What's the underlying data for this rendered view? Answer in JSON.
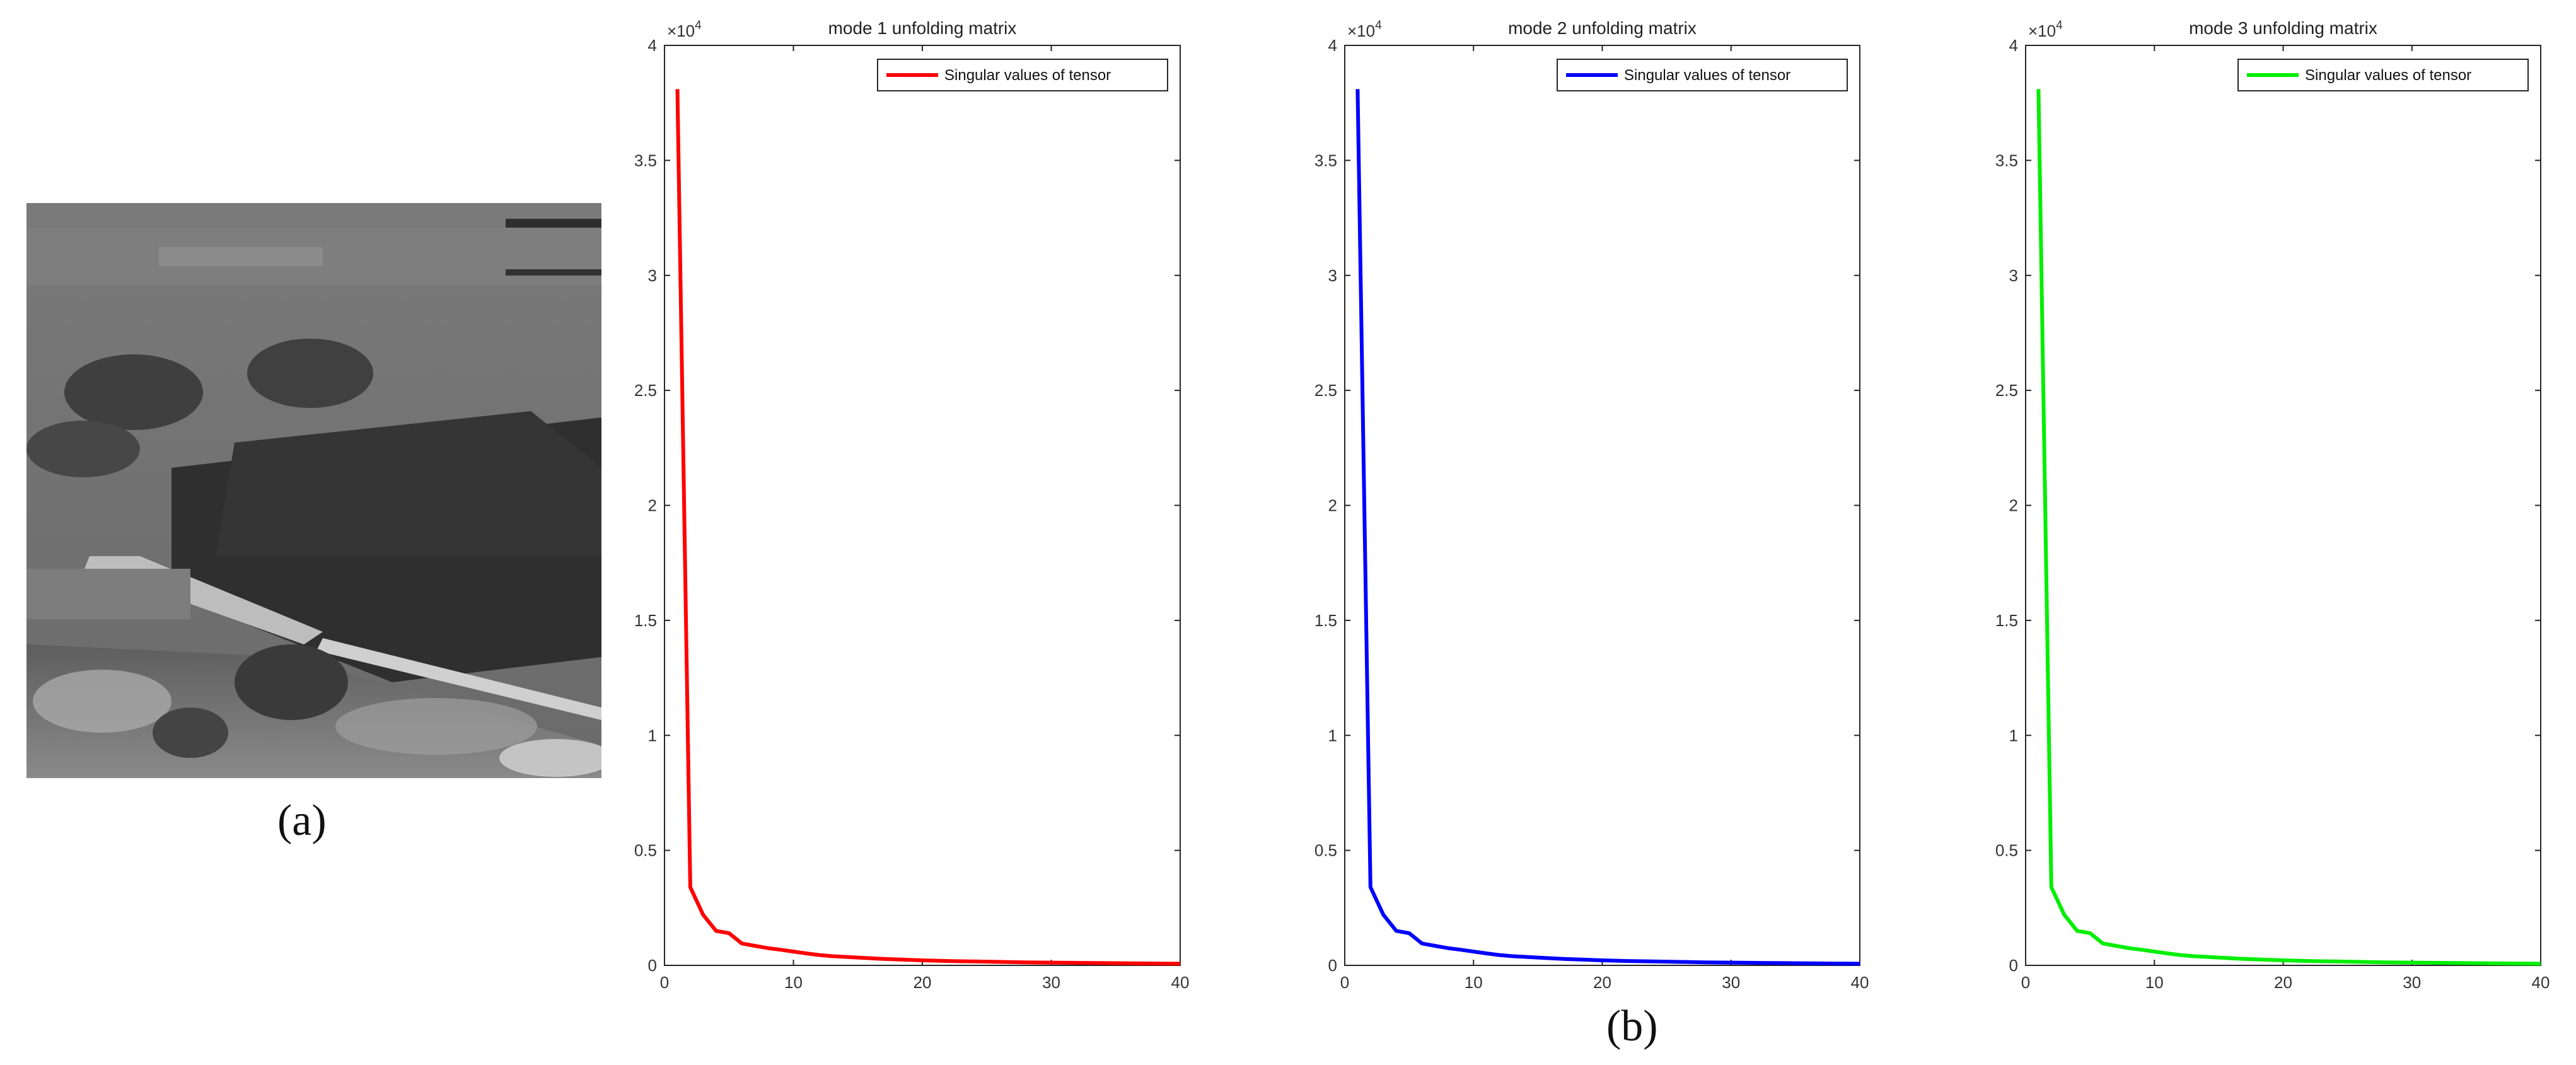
{
  "figure": {
    "caption_a": "(a)",
    "caption_b": "(b)"
  },
  "image_panel": {
    "description_icon": "infrared-landscape-image"
  },
  "chart_data": [
    {
      "type": "line",
      "title": "mode 1 unfolding matrix",
      "xlabel": "",
      "ylabel": "",
      "xlim": [
        0,
        40
      ],
      "ylim": [
        0,
        4
      ],
      "y_scale_label": "×10",
      "y_scale_exponent": "4",
      "x_ticks": [
        0,
        10,
        20,
        30,
        40
      ],
      "y_ticks": [
        0,
        0.5,
        1,
        1.5,
        2,
        2.5,
        3,
        3.5,
        4
      ],
      "x_tick_labels": [
        "0",
        "10",
        "20",
        "30",
        "40"
      ],
      "y_tick_labels": [
        "0",
        "0.5",
        "1",
        "1.5",
        "2",
        "2.5",
        "3",
        "3.5",
        "4"
      ],
      "grid": false,
      "legend_position": "top-right",
      "color": "#ff0000",
      "series": [
        {
          "name": "Singular values of tensor",
          "x": [
            1,
            2,
            3,
            4,
            5,
            6,
            7,
            8,
            9,
            10,
            11,
            12,
            13,
            14,
            15,
            16,
            17,
            18,
            19,
            20,
            22,
            24,
            26,
            28,
            30,
            32,
            34,
            36,
            38,
            40
          ],
          "y": [
            3.81,
            0.34,
            0.22,
            0.15,
            0.14,
            0.095,
            0.085,
            0.075,
            0.068,
            0.06,
            0.052,
            0.045,
            0.04,
            0.037,
            0.034,
            0.031,
            0.028,
            0.026,
            0.024,
            0.022,
            0.019,
            0.017,
            0.015,
            0.013,
            0.012,
            0.011,
            0.01,
            0.009,
            0.008,
            0.007
          ]
        }
      ]
    },
    {
      "type": "line",
      "title": "mode 2 unfolding matrix",
      "xlabel": "",
      "ylabel": "",
      "xlim": [
        0,
        40
      ],
      "ylim": [
        0,
        4
      ],
      "y_scale_label": "×10",
      "y_scale_exponent": "4",
      "x_ticks": [
        0,
        10,
        20,
        30,
        40
      ],
      "y_ticks": [
        0,
        0.5,
        1,
        1.5,
        2,
        2.5,
        3,
        3.5,
        4
      ],
      "x_tick_labels": [
        "0",
        "10",
        "20",
        "30",
        "40"
      ],
      "y_tick_labels": [
        "0",
        "0.5",
        "1",
        "1.5",
        "2",
        "2.5",
        "3",
        "3.5",
        "4"
      ],
      "grid": false,
      "legend_position": "top-right",
      "color": "#0000ff",
      "series": [
        {
          "name": "Singular values of tensor",
          "x": [
            1,
            2,
            3,
            4,
            5,
            6,
            7,
            8,
            9,
            10,
            11,
            12,
            13,
            14,
            15,
            16,
            17,
            18,
            19,
            20,
            22,
            24,
            26,
            28,
            30,
            32,
            34,
            36,
            38,
            40
          ],
          "y": [
            3.81,
            0.34,
            0.22,
            0.15,
            0.14,
            0.095,
            0.085,
            0.075,
            0.068,
            0.06,
            0.052,
            0.045,
            0.04,
            0.037,
            0.034,
            0.031,
            0.028,
            0.026,
            0.024,
            0.022,
            0.019,
            0.017,
            0.015,
            0.013,
            0.012,
            0.011,
            0.01,
            0.009,
            0.008,
            0.007
          ]
        }
      ]
    },
    {
      "type": "line",
      "title": "mode 3 unfolding matrix",
      "xlabel": "",
      "ylabel": "",
      "xlim": [
        0,
        40
      ],
      "ylim": [
        0,
        4
      ],
      "y_scale_label": "×10",
      "y_scale_exponent": "4",
      "x_ticks": [
        0,
        10,
        20,
        30,
        40
      ],
      "y_ticks": [
        0,
        0.5,
        1,
        1.5,
        2,
        2.5,
        3,
        3.5,
        4
      ],
      "x_tick_labels": [
        "0",
        "10",
        "20",
        "30",
        "40"
      ],
      "y_tick_labels": [
        "0",
        "0.5",
        "1",
        "1.5",
        "2",
        "2.5",
        "3",
        "3.5",
        "4"
      ],
      "grid": false,
      "legend_position": "top-right",
      "color": "#00ee00",
      "series": [
        {
          "name": "Singular values of tensor",
          "x": [
            1,
            2,
            3,
            4,
            5,
            6,
            7,
            8,
            9,
            10,
            11,
            12,
            13,
            14,
            15,
            16,
            17,
            18,
            19,
            20,
            22,
            24,
            26,
            28,
            30,
            32,
            34,
            36,
            38,
            40
          ],
          "y": [
            3.81,
            0.34,
            0.22,
            0.15,
            0.14,
            0.095,
            0.085,
            0.075,
            0.068,
            0.06,
            0.052,
            0.045,
            0.04,
            0.037,
            0.034,
            0.031,
            0.028,
            0.026,
            0.024,
            0.022,
            0.019,
            0.017,
            0.015,
            0.013,
            0.012,
            0.011,
            0.01,
            0.009,
            0.008,
            0.007
          ]
        }
      ]
    }
  ]
}
